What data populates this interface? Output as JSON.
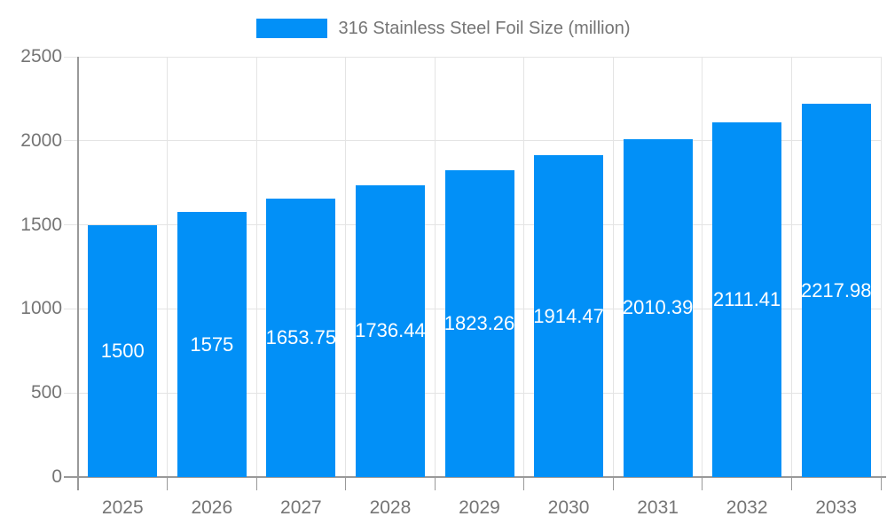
{
  "legend": {
    "label": "316 Stainless Steel Foil Size (million)"
  },
  "colors": {
    "bar": "#0290f7",
    "grid": "#e4e4e4",
    "axis": "#999999",
    "axis_text": "#757575",
    "value_text": "#ffffff"
  },
  "chart_data": {
    "type": "bar",
    "title": "",
    "xlabel": "",
    "ylabel": "",
    "categories": [
      "2025",
      "2026",
      "2027",
      "2028",
      "2029",
      "2030",
      "2031",
      "2032",
      "2033"
    ],
    "series": [
      {
        "name": "316 Stainless Steel Foil Size (million)",
        "values": [
          1500,
          1575,
          1653.75,
          1736.44,
          1823.26,
          1914.47,
          2010.39,
          2111.41,
          2217.98
        ]
      }
    ],
    "value_labels": [
      "1500",
      "1575",
      "1653.75",
      "1736.44",
      "1823.26",
      "1914.47",
      "2010.39",
      "2111.41",
      "2217.98"
    ],
    "ylim": [
      0,
      2500
    ],
    "yticks": [
      0,
      500,
      1000,
      1500,
      2000,
      2500
    ],
    "grid": true,
    "legend_position": "top"
  }
}
